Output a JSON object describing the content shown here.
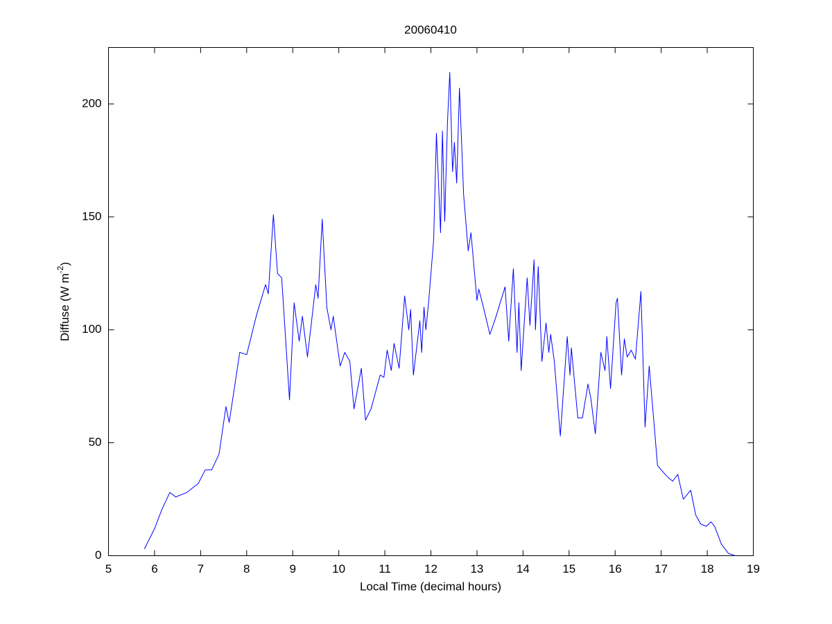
{
  "chart_data": {
    "type": "line",
    "title": "20060410",
    "xlabel": "Local Time (decimal hours)",
    "ylabel": [
      "Diffuse (W m",
      "-2",
      ")"
    ],
    "x": [
      5.78,
      6.0,
      6.15,
      6.33,
      6.46,
      6.7,
      6.95,
      7.1,
      7.24,
      7.4,
      7.55,
      7.62,
      7.85,
      8.0,
      8.22,
      8.41,
      8.47,
      8.58,
      8.67,
      8.76,
      8.93,
      9.03,
      9.14,
      9.21,
      9.32,
      9.5,
      9.55,
      9.64,
      9.74,
      9.83,
      9.88,
      10.03,
      10.13,
      10.24,
      10.33,
      10.49,
      10.58,
      10.7,
      10.9,
      10.98,
      11.05,
      11.14,
      11.2,
      11.31,
      11.43,
      11.52,
      11.56,
      11.62,
      11.76,
      11.8,
      11.85,
      11.89,
      11.95,
      12.06,
      12.12,
      12.21,
      12.25,
      12.3,
      12.36,
      12.41,
      12.47,
      12.51,
      12.56,
      12.62,
      12.71,
      12.81,
      12.87,
      13.0,
      13.04,
      13.14,
      13.28,
      13.4,
      13.61,
      13.69,
      13.79,
      13.87,
      13.91,
      13.96,
      14.09,
      14.15,
      14.24,
      14.27,
      14.33,
      14.41,
      14.5,
      14.56,
      14.6,
      14.68,
      14.81,
      14.96,
      15.02,
      15.05,
      15.19,
      15.29,
      15.41,
      15.47,
      15.57,
      15.69,
      15.78,
      15.82,
      15.9,
      16.02,
      16.05,
      16.14,
      16.2,
      16.26,
      16.35,
      16.44,
      16.56,
      16.65,
      16.74,
      16.92,
      17.0,
      17.13,
      17.25,
      17.36,
      17.48,
      17.64,
      17.75,
      17.86,
      17.98,
      18.08,
      18.16,
      18.31,
      18.46,
      18.61
    ],
    "series": [
      {
        "color": "#0000ff",
        "values": [
          3,
          12,
          20,
          28,
          26,
          28,
          32,
          38,
          38,
          45,
          66,
          59,
          90,
          89,
          107,
          120,
          116,
          151,
          125,
          123,
          69,
          112,
          95,
          106,
          88,
          120,
          114,
          149,
          110,
          100,
          106,
          84,
          90,
          86,
          65,
          83,
          60,
          65,
          80,
          79,
          91,
          82,
          94,
          83,
          115,
          100,
          109,
          80,
          104,
          90,
          110,
          100,
          112,
          140,
          187,
          143,
          188,
          148,
          192,
          214,
          170,
          183,
          165,
          207,
          160,
          135,
          143,
          113,
          118,
          110,
          98,
          105,
          119,
          95,
          127,
          90,
          112,
          82,
          123,
          102,
          131,
          100,
          128,
          86,
          103,
          90,
          98,
          86,
          53,
          97,
          80,
          92,
          61,
          61,
          76,
          70,
          54,
          90,
          82,
          97,
          74,
          112,
          114,
          80,
          96,
          88,
          91,
          87,
          117,
          57,
          84,
          40,
          38,
          35,
          33,
          36,
          25,
          29,
          18,
          14,
          13,
          15,
          13,
          5,
          1,
          0
        ]
      }
    ],
    "xlim": [
      5,
      19
    ],
    "xticks": [
      5,
      6,
      7,
      8,
      9,
      10,
      11,
      12,
      13,
      14,
      15,
      16,
      17,
      18,
      19
    ],
    "ylim": [
      0,
      225
    ],
    "yticks": [
      0,
      50,
      100,
      150,
      200
    ]
  }
}
